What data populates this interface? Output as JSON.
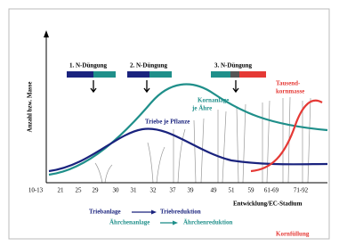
{
  "y_axis_label": "Anzahl bzw. Masse",
  "x_axis_label": "Entwicklung/EC-Stadium",
  "x_ticks": [
    "10-13",
    "21",
    "25",
    "29",
    "30",
    "31",
    "32",
    "37",
    "39",
    "49",
    "51",
    "59",
    "61-69",
    "71-92"
  ],
  "fertilization": [
    {
      "label": "1. N-Düngung"
    },
    {
      "label": "2. N-Düngung"
    },
    {
      "label": "3. N-Düngung"
    }
  ],
  "curves": [
    {
      "lines": [
        "Kornanlage",
        "je Ähre"
      ]
    },
    {
      "lines": [
        "Triebe  je Pflanze"
      ]
    },
    {
      "lines": [
        "Tausend-",
        "kornmasse"
      ]
    }
  ],
  "phases": [
    "Triebanlage",
    "Triebreduktion",
    "Ährchenanlage",
    "Ährchenreduktion",
    "Kornfüllung"
  ]
}
